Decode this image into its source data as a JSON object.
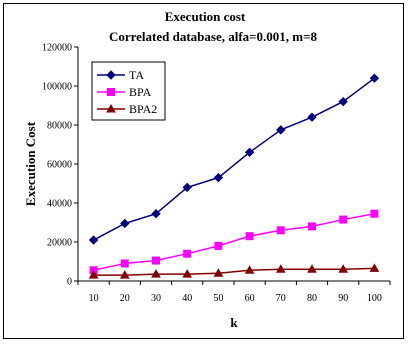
{
  "chart_data": {
    "type": "line",
    "title": "Execution cost",
    "subtitle": "Correlated database, alfa=0.001,  m=8",
    "xlabel": "k",
    "ylabel": "Execution Cost",
    "categories": [
      "10",
      "20",
      "30",
      "40",
      "50",
      "60",
      "70",
      "80",
      "90",
      "100"
    ],
    "ylim": [
      0,
      120000
    ],
    "yticks": [
      0,
      20000,
      40000,
      60000,
      80000,
      100000,
      120000
    ],
    "ytick_labels": [
      "0",
      "20000",
      "40000",
      "60000",
      "80000",
      "100000",
      "120000"
    ],
    "grid": false,
    "legend_position": "top-left",
    "series": [
      {
        "name": "TA",
        "color": "#000080",
        "marker": "diamond",
        "values": [
          21000,
          29500,
          34500,
          48000,
          53000,
          66000,
          77500,
          84000,
          92000,
          104000
        ]
      },
      {
        "name": "BPA",
        "color": "#FF00FF",
        "marker": "square",
        "values": [
          5500,
          9000,
          10500,
          14000,
          18000,
          23000,
          26000,
          28000,
          31500,
          34500
        ]
      },
      {
        "name": "BPA2",
        "color": "#800000",
        "marker": "triangle",
        "values": [
          3000,
          3000,
          3500,
          3500,
          4000,
          5500,
          6000,
          6000,
          6000,
          6500
        ]
      }
    ]
  }
}
